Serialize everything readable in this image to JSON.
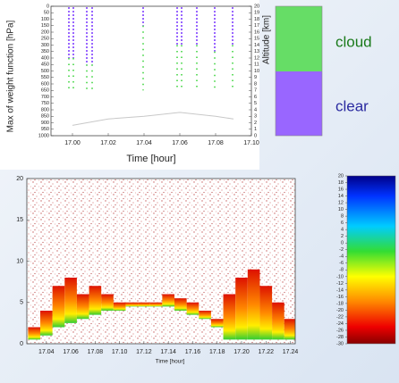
{
  "chart_data": [
    {
      "type": "range",
      "xlabel": "Time [hour]",
      "ylabel": "Max of weight function [hPa]",
      "y2label": "Altitude [km]",
      "x": [
        16.998,
        17.0005,
        17.008,
        17.011,
        17.0395,
        17.0585,
        17.061,
        17.0695,
        17.0795,
        17.0895
      ],
      "series": [
        {
          "name": "cloud",
          "color": "#66dd66",
          "values": [
            650,
            650,
            650,
            650,
            650,
            650,
            650,
            650,
            650,
            650
          ]
        },
        {
          "name": "clear",
          "color": "#9966ff",
          "values": [
            400,
            400,
            450,
            450,
            150,
            300,
            300,
            300,
            350,
            300
          ]
        }
      ],
      "line": {
        "color": "#c8c8c8",
        "x": [
          17.0,
          17.02,
          17.04,
          17.06,
          17.08,
          17.09
        ],
        "values": [
          920,
          870,
          850,
          820,
          850,
          870
        ]
      },
      "xlim": [
        16.988,
        17.1
      ],
      "xticks": [
        {
          "value": 17.0,
          "label": "17.00"
        },
        {
          "value": 17.02,
          "label": "17.02"
        },
        {
          "value": 17.04,
          "label": "17.04"
        },
        {
          "value": 17.06,
          "label": "17.06"
        },
        {
          "value": 17.08,
          "label": "17.08"
        },
        {
          "value": 17.1,
          "label": "17.10"
        }
      ],
      "ylim": [
        0,
        1000
      ],
      "yticks": [
        0,
        50,
        100,
        150,
        200,
        250,
        300,
        350,
        400,
        450,
        500,
        550,
        600,
        650,
        700,
        750,
        800,
        850,
        900,
        950,
        1000
      ],
      "y2lim": [
        0,
        20
      ],
      "y2ticks": [
        0,
        1,
        2,
        3,
        4,
        5,
        6,
        7,
        8,
        9,
        10,
        11,
        12,
        13,
        14,
        15,
        16,
        17,
        18,
        19,
        20
      ]
    },
    {
      "type": "profile",
      "xlabel": "Time [hour]",
      "x": [
        17.03,
        17.04,
        17.05,
        17.06,
        17.07,
        17.08,
        17.09,
        17.1,
        17.11,
        17.12,
        17.13,
        17.14,
        17.15,
        17.16,
        17.17,
        17.18,
        17.19,
        17.2,
        17.21,
        17.22,
        17.23,
        17.24
      ],
      "base": [
        0.5,
        1,
        2,
        2.5,
        3,
        3.5,
        4,
        4,
        4.5,
        4.5,
        4.5,
        4.5,
        4,
        3.5,
        3,
        2,
        0.5,
        0.5,
        0.5,
        0.5,
        0.5,
        0.5
      ],
      "top": [
        2,
        4,
        7,
        8,
        6,
        7,
        6,
        5,
        5,
        5,
        5,
        6,
        5.5,
        5,
        4,
        3,
        6,
        8,
        9,
        7,
        5,
        3
      ],
      "xlim": [
        17.024,
        17.244
      ],
      "xticks": [
        {
          "value": 17.04,
          "label": "17.04"
        },
        {
          "value": 17.06,
          "label": "17.06"
        },
        {
          "value": 17.08,
          "label": "17.08"
        },
        {
          "value": 17.1,
          "label": "17.10"
        },
        {
          "value": 17.12,
          "label": "17.12"
        },
        {
          "value": 17.14,
          "label": "17.14"
        },
        {
          "value": 17.16,
          "label": "17.16"
        },
        {
          "value": 17.18,
          "label": "17.18"
        },
        {
          "value": 17.2,
          "label": "17.20"
        },
        {
          "value": 17.22,
          "label": "17.22"
        },
        {
          "value": 17.24,
          "label": "17.24"
        }
      ],
      "ylim": [
        0,
        20
      ],
      "yticks": [
        0,
        5,
        10,
        15,
        20
      ],
      "clim": [
        -30,
        20
      ],
      "cticks": [
        20,
        18,
        16,
        14,
        12,
        10,
        8,
        6,
        4,
        2,
        0,
        -2,
        -4,
        -6,
        -8,
        -10,
        -12,
        -14,
        -16,
        -18,
        -20,
        -22,
        -24,
        -26,
        -28,
        -30
      ]
    }
  ]
}
